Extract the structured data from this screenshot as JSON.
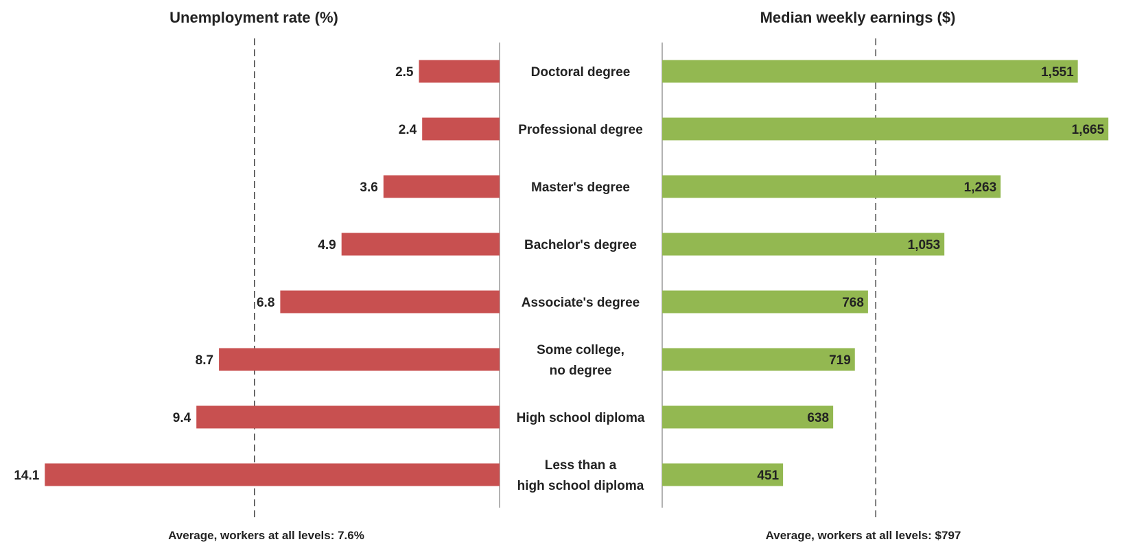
{
  "chart_data": {
    "type": "bar",
    "categories": [
      [
        "Doctoral degree"
      ],
      [
        "Professional degree"
      ],
      [
        "Master's degree"
      ],
      [
        "Bachelor's degree"
      ],
      [
        "Associate's degree"
      ],
      [
        "Some college,",
        "no degree"
      ],
      [
        "High school diploma"
      ],
      [
        "Less than a",
        "high school diploma"
      ]
    ],
    "unemployment": {
      "title": "Unemployment rate (%)",
      "values": [
        2.5,
        2.4,
        3.6,
        4.9,
        6.8,
        8.7,
        9.4,
        14.1
      ],
      "value_labels": [
        "2.5",
        "2.4",
        "3.6",
        "4.9",
        "6.8",
        "8.7",
        "9.4",
        "14.1"
      ],
      "average": 7.6,
      "average_label": "Average, workers at all levels: 7.6%",
      "color": "#c85050"
    },
    "earnings": {
      "title": "Median weekly earnings ($)",
      "values": [
        1551,
        1665,
        1263,
        1053,
        768,
        719,
        638,
        451
      ],
      "value_labels": [
        "1,551",
        "1,665",
        "1,263",
        "1,053",
        "768",
        "719",
        "638",
        "451"
      ],
      "average": 797,
      "average_label": "Average, workers at all levels: $797",
      "color": "#93b851"
    }
  }
}
